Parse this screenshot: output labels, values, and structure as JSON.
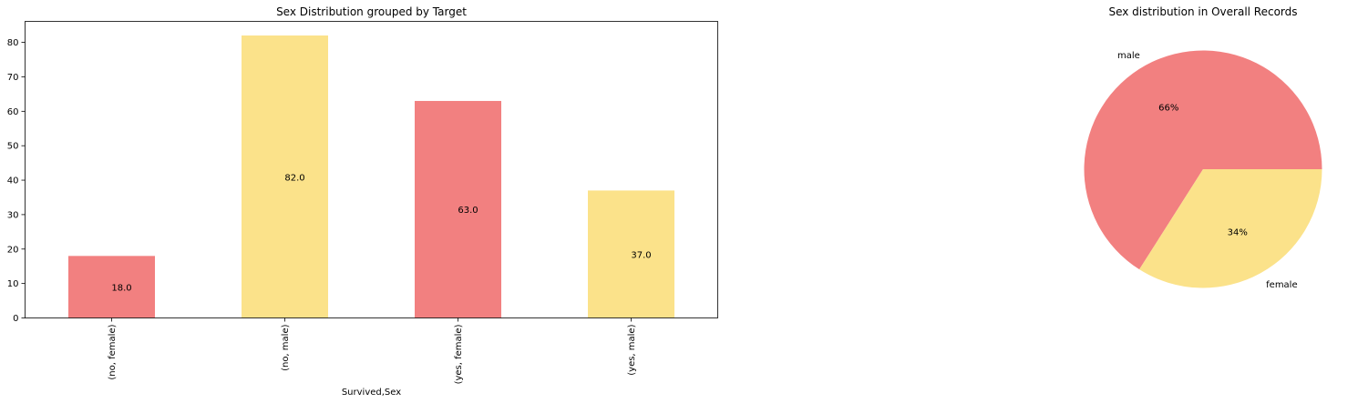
{
  "colors": {
    "red": "#f28080",
    "yellow": "#fbe28a",
    "axis": "#000000"
  },
  "chart_data": [
    {
      "type": "bar",
      "title": "Sex Distribution grouped by Target",
      "xlabel": "Survived,Sex",
      "ylabel": "",
      "categories": [
        "(no, female)",
        "(no, male)",
        "(yes, female)",
        "(yes, male)"
      ],
      "values": [
        18,
        82,
        63,
        37
      ],
      "data_labels": [
        "18.0",
        "82.0",
        "63.0",
        "37.0"
      ],
      "bar_colors": [
        "#f28080",
        "#fbe28a",
        "#f28080",
        "#fbe28a"
      ],
      "ylim": [
        0,
        86.1
      ],
      "yticks": [
        0,
        10,
        20,
        30,
        40,
        50,
        60,
        70,
        80
      ],
      "ytick_labels": [
        "0",
        "10",
        "20",
        "30",
        "40",
        "50",
        "60",
        "70",
        "80"
      ],
      "grid": false,
      "legend": false
    },
    {
      "type": "pie",
      "title": "Sex distribution in Overall Records",
      "labels": [
        "male",
        "female"
      ],
      "values": [
        66,
        34
      ],
      "pct_labels": [
        "66%",
        "34%"
      ],
      "colors": [
        "#f28080",
        "#fbe28a"
      ],
      "legend": false
    }
  ]
}
